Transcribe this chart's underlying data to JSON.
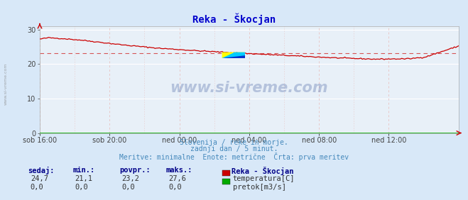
{
  "title": "Reka - Škocjan",
  "title_color": "#0000cc",
  "bg_color": "#d8e8f8",
  "plot_bg_color": "#e8f0f8",
  "grid_color_h": "#ffffff",
  "grid_color_v": "#e8c8c8",
  "x_labels": [
    "sob 16:00",
    "sob 20:00",
    "ned 00:00",
    "ned 04:00",
    "ned 08:00",
    "ned 12:00"
  ],
  "x_ticks_norm": [
    0.0,
    0.1667,
    0.3333,
    0.5,
    0.6667,
    0.8333
  ],
  "y_ticks": [
    0,
    10,
    20,
    30
  ],
  "ylim": [
    0,
    31
  ],
  "temp_avg": 23.2,
  "line_color": "#cc0000",
  "flow_color": "#00aa00",
  "footer_color": "#4488bb",
  "label_color": "#000088",
  "footer_text": "Slovenija / reke in morje.\nzadnji dan / 5 minut.\nMeritve: minimalne  Enote: metrične  Črta: prva meritev",
  "stats_headers": [
    "sedaj:",
    "min.:",
    "povpr.:",
    "maks.:"
  ],
  "stats_temp": [
    "24,7",
    "21,1",
    "23,2",
    "27,6"
  ],
  "stats_flow": [
    "0,0",
    "0,0",
    "0,0",
    "0,0"
  ],
  "legend_title": "Reka - Škocjan",
  "legend_temp": "temperatura[C]",
  "legend_flow": "pretok[m3/s]",
  "watermark": "www.si-vreme.com",
  "watermark_color": "#1a3a8a",
  "temp_pts_x": [
    0,
    0.02,
    0.05,
    0.1,
    0.15,
    0.2,
    0.28,
    0.38,
    0.5,
    0.6,
    0.7,
    0.8,
    0.88,
    0.92,
    0.97,
    1.0
  ],
  "temp_pts_y": [
    27.2,
    27.6,
    27.4,
    26.9,
    26.2,
    25.5,
    24.6,
    23.8,
    23.0,
    22.4,
    21.8,
    21.4,
    21.5,
    22.0,
    24.0,
    25.2
  ]
}
